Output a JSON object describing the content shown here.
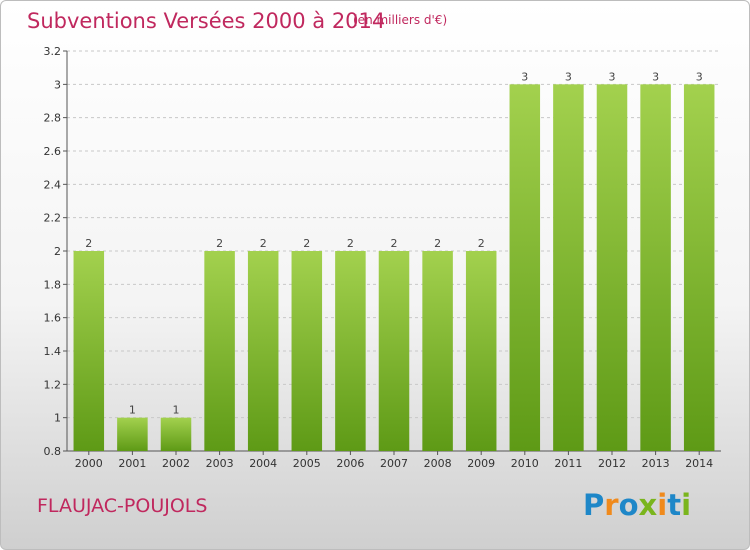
{
  "header": {
    "title": "Subventions Versées 2000 à 2014",
    "subtitle": "(en milliers d'€)"
  },
  "footer": {
    "commune": "FLAUJAC-POUJOLS",
    "brand_letters": [
      "P",
      "r",
      "o",
      "x",
      "i",
      "t",
      "i"
    ],
    "brand_colors": [
      "#1e87c8",
      "#f08a1c",
      "#1e87c8",
      "#7ab51d",
      "#f08a1c",
      "#1e87c8",
      "#7ab51d"
    ]
  },
  "chart_data": {
    "type": "bar",
    "title": "Subventions Versées 2000 à 2014",
    "subtitle": "(en milliers d'€)",
    "categories": [
      "2000",
      "2001",
      "2002",
      "2003",
      "2004",
      "2005",
      "2006",
      "2007",
      "2008",
      "2009",
      "2010",
      "2011",
      "2012",
      "2013",
      "2014"
    ],
    "values": [
      2,
      1,
      1,
      2,
      2,
      2,
      2,
      2,
      2,
      2,
      3,
      3,
      3,
      3,
      3
    ],
    "data_labels": [
      "2",
      "1",
      "1",
      "2",
      "2",
      "2",
      "2",
      "2",
      "2",
      "2",
      "3",
      "3",
      "3",
      "3",
      "3"
    ],
    "ylim": [
      0.8,
      3.2
    ],
    "yticks": [
      0.8,
      1,
      1.2,
      1.4,
      1.6,
      1.8,
      2,
      2.2,
      2.4,
      2.6,
      2.8,
      3,
      3.2
    ],
    "ytick_labels": [
      "0.8",
      "1",
      "1.2",
      "1.4",
      "1.6",
      "1.8",
      "2",
      "2.2",
      "2.4",
      "2.6",
      "2.8",
      "3",
      "3.2"
    ],
    "grid": true,
    "bar_color": "#7cb82f",
    "bar_color_light": "#a3d14e",
    "bar_color_dark": "#5e9a16",
    "grid_color": "#c8c8c8",
    "xlabel": "",
    "ylabel": ""
  }
}
